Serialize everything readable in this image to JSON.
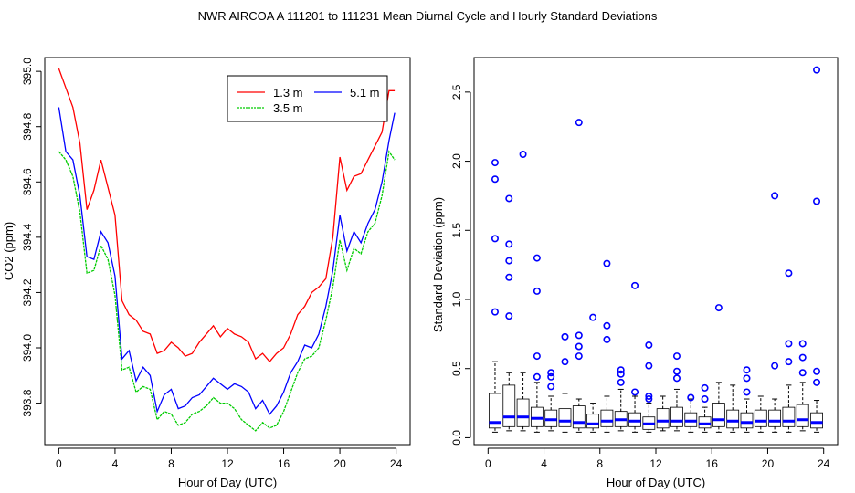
{
  "title": "NWR   AIRCOA A   111201 to 111231   Mean Diurnal Cycle and Hourly Standard Deviations",
  "chart_data": [
    {
      "type": "line",
      "xlabel": "Hour of Day (UTC)",
      "ylabel": "CO2 (ppm)",
      "xlim": [
        -1,
        25
      ],
      "ylim": [
        393.65,
        395.05
      ],
      "xticks": [
        "0",
        "4",
        "8",
        "12",
        "16",
        "20",
        "24"
      ],
      "yticks": [
        "393.8",
        "394.0",
        "394.2",
        "394.4",
        "394.6",
        "394.8",
        "395.0"
      ],
      "legend": [
        "1.3 m",
        "5.1 m",
        "3.5 m"
      ],
      "colors": {
        "1.3 m": "#ff0000",
        "5.1 m": "#0000ff",
        "3.5 m": "#00cc00"
      },
      "x": [
        0,
        0.5,
        1,
        1.5,
        2,
        2.5,
        3,
        3.5,
        4,
        4.5,
        5,
        5.5,
        6,
        6.5,
        7,
        7.5,
        8,
        8.5,
        9,
        9.5,
        10,
        10.5,
        11,
        11.5,
        12,
        12.5,
        13,
        13.5,
        14,
        14.5,
        15,
        15.5,
        16,
        16.5,
        17,
        17.5,
        18,
        18.5,
        19,
        19.5,
        20,
        20.5,
        21,
        21.5,
        22,
        22.5,
        23,
        23.5,
        23.9
      ],
      "series": [
        {
          "name": "1.3 m",
          "values": [
            395.01,
            394.94,
            394.87,
            394.74,
            394.5,
            394.57,
            394.68,
            394.58,
            394.48,
            394.17,
            394.12,
            394.1,
            394.06,
            394.05,
            393.98,
            393.99,
            394.02,
            394.0,
            393.97,
            393.98,
            394.02,
            394.05,
            394.08,
            394.04,
            394.07,
            394.05,
            394.04,
            394.02,
            393.96,
            393.98,
            393.95,
            393.98,
            394.0,
            394.05,
            394.12,
            394.15,
            394.2,
            394.22,
            394.25,
            394.4,
            394.69,
            394.57,
            394.62,
            394.63,
            394.68,
            394.73,
            394.78,
            394.93,
            394.93
          ]
        },
        {
          "name": "5.1 m",
          "values": [
            394.87,
            394.71,
            394.68,
            394.55,
            394.33,
            394.32,
            394.42,
            394.38,
            394.26,
            393.96,
            393.99,
            393.88,
            393.93,
            393.9,
            393.77,
            393.83,
            393.85,
            393.78,
            393.79,
            393.82,
            393.83,
            393.86,
            393.89,
            393.87,
            393.85,
            393.87,
            393.86,
            393.84,
            393.78,
            393.81,
            393.76,
            393.79,
            393.84,
            393.91,
            393.95,
            394.01,
            394.0,
            394.05,
            394.15,
            394.28,
            394.48,
            394.35,
            394.42,
            394.38,
            394.45,
            394.5,
            394.6,
            394.75,
            394.85
          ]
        },
        {
          "name": "3.5 m",
          "values": [
            394.71,
            394.68,
            394.62,
            394.49,
            394.27,
            394.28,
            394.37,
            394.32,
            394.19,
            393.92,
            393.93,
            393.84,
            393.86,
            393.85,
            393.74,
            393.77,
            393.76,
            393.72,
            393.73,
            393.76,
            393.77,
            393.79,
            393.82,
            393.8,
            393.8,
            393.78,
            393.74,
            393.72,
            393.7,
            393.73,
            393.71,
            393.72,
            393.77,
            393.84,
            393.91,
            393.96,
            393.97,
            394.0,
            394.1,
            394.22,
            394.39,
            394.28,
            394.36,
            394.34,
            394.42,
            394.45,
            394.55,
            394.71,
            394.68
          ]
        }
      ]
    },
    {
      "type": "box",
      "xlabel": "Hour of Day (UTC)",
      "ylabel": "Standard Deviation (ppm)",
      "xlim": [
        -1,
        25
      ],
      "ylim": [
        -0.05,
        2.75
      ],
      "xticks": [
        "0",
        "4",
        "8",
        "12",
        "16",
        "20",
        "24"
      ],
      "yticks": [
        "0.0",
        "0.5",
        "1.0",
        "1.5",
        "2.0",
        "2.5"
      ],
      "color": "#0000ff",
      "boxes": [
        {
          "x": 0.5,
          "q1": 0.07,
          "med": 0.11,
          "q3": 0.32,
          "lo": 0.04,
          "hi": 0.55,
          "out": [
            0.91,
            1.44,
            1.87,
            1.99
          ]
        },
        {
          "x": 1.5,
          "q1": 0.08,
          "med": 0.15,
          "q3": 0.38,
          "lo": 0.05,
          "hi": 0.47,
          "out": [
            0.88,
            1.16,
            1.28,
            1.4,
            1.73
          ]
        },
        {
          "x": 2.5,
          "q1": 0.08,
          "med": 0.15,
          "q3": 0.28,
          "lo": 0.05,
          "hi": 0.47,
          "out": [
            2.05
          ]
        },
        {
          "x": 3.5,
          "q1": 0.08,
          "med": 0.14,
          "q3": 0.22,
          "lo": 0.04,
          "hi": 0.4,
          "out": [
            0.44,
            0.59,
            1.06,
            1.3
          ]
        },
        {
          "x": 4.5,
          "q1": 0.08,
          "med": 0.13,
          "q3": 0.2,
          "lo": 0.05,
          "hi": 0.3,
          "out": [
            0.37,
            0.44,
            0.47
          ]
        },
        {
          "x": 5.5,
          "q1": 0.08,
          "med": 0.12,
          "q3": 0.21,
          "lo": 0.04,
          "hi": 0.32,
          "out": [
            0.55,
            0.73
          ]
        },
        {
          "x": 6.5,
          "q1": 0.07,
          "med": 0.11,
          "q3": 0.23,
          "lo": 0.04,
          "hi": 0.28,
          "out": [
            0.59,
            0.66,
            0.74,
            2.28
          ]
        },
        {
          "x": 7.5,
          "q1": 0.07,
          "med": 0.1,
          "q3": 0.17,
          "lo": 0.04,
          "hi": 0.25,
          "out": [
            0.87
          ]
        },
        {
          "x": 8.5,
          "q1": 0.08,
          "med": 0.12,
          "q3": 0.2,
          "lo": 0.04,
          "hi": 0.3,
          "out": [
            0.71,
            0.81,
            1.26
          ]
        },
        {
          "x": 9.5,
          "q1": 0.08,
          "med": 0.13,
          "q3": 0.19,
          "lo": 0.05,
          "hi": 0.35,
          "out": [
            0.4,
            0.46,
            0.49
          ]
        },
        {
          "x": 10.5,
          "q1": 0.08,
          "med": 0.12,
          "q3": 0.18,
          "lo": 0.04,
          "hi": 0.3,
          "out": [
            0.33,
            1.1
          ]
        },
        {
          "x": 11.5,
          "q1": 0.06,
          "med": 0.1,
          "q3": 0.15,
          "lo": 0.04,
          "hi": 0.25,
          "out": [
            0.28,
            0.3,
            0.52,
            0.67
          ]
        },
        {
          "x": 12.5,
          "q1": 0.07,
          "med": 0.12,
          "q3": 0.21,
          "lo": 0.05,
          "hi": 0.3,
          "out": []
        },
        {
          "x": 13.5,
          "q1": 0.08,
          "med": 0.12,
          "q3": 0.22,
          "lo": 0.05,
          "hi": 0.35,
          "out": [
            0.43,
            0.48,
            0.59
          ]
        },
        {
          "x": 14.5,
          "q1": 0.08,
          "med": 0.12,
          "q3": 0.18,
          "lo": 0.04,
          "hi": 0.28,
          "out": [
            0.29
          ]
        },
        {
          "x": 15.5,
          "q1": 0.07,
          "med": 0.1,
          "q3": 0.15,
          "lo": 0.04,
          "hi": 0.22,
          "out": [
            0.28,
            0.36
          ]
        },
        {
          "x": 16.5,
          "q1": 0.08,
          "med": 0.13,
          "q3": 0.25,
          "lo": 0.04,
          "hi": 0.4,
          "out": [
            0.94
          ]
        },
        {
          "x": 17.5,
          "q1": 0.07,
          "med": 0.12,
          "q3": 0.2,
          "lo": 0.04,
          "hi": 0.38,
          "out": []
        },
        {
          "x": 18.5,
          "q1": 0.07,
          "med": 0.11,
          "q3": 0.18,
          "lo": 0.04,
          "hi": 0.28,
          "out": [
            0.33,
            0.43,
            0.49
          ]
        },
        {
          "x": 19.5,
          "q1": 0.08,
          "med": 0.12,
          "q3": 0.2,
          "lo": 0.04,
          "hi": 0.3,
          "out": []
        },
        {
          "x": 20.5,
          "q1": 0.08,
          "med": 0.12,
          "q3": 0.2,
          "lo": 0.04,
          "hi": 0.28,
          "out": [
            0.52,
            1.75
          ]
        },
        {
          "x": 21.5,
          "q1": 0.08,
          "med": 0.12,
          "q3": 0.22,
          "lo": 0.04,
          "hi": 0.38,
          "out": [
            0.55,
            0.68,
            1.19
          ]
        },
        {
          "x": 22.5,
          "q1": 0.08,
          "med": 0.13,
          "q3": 0.24,
          "lo": 0.05,
          "hi": 0.4,
          "out": [
            0.47,
            0.58,
            0.68
          ]
        },
        {
          "x": 23.5,
          "q1": 0.07,
          "med": 0.11,
          "q3": 0.18,
          "lo": 0.04,
          "hi": 0.27,
          "out": [
            0.4,
            0.48,
            1.71,
            2.66
          ]
        }
      ]
    }
  ]
}
